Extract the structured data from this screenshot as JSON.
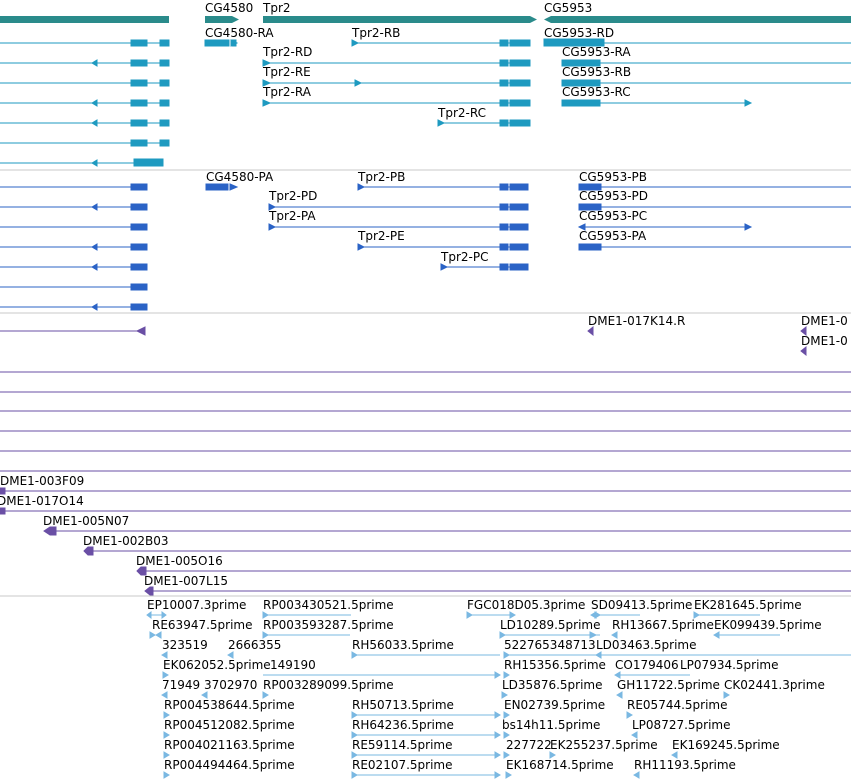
{
  "colors": {
    "gene": "#2a8b8b",
    "transcript_ra": "#1e9ac0",
    "transcript_pa": "#2b63c6",
    "clone": "#6a4fa5",
    "est": "#7ab8e2",
    "separator": "#c8c8c8",
    "label": "#000000"
  },
  "genes": {
    "labels": [
      "CG4580",
      "Tpr2",
      "CG5953"
    ]
  },
  "transcripts_ra": {
    "labels": [
      "CG4580-RA",
      "Tpr2-RD",
      "Tpr2-RB",
      "Tpr2-RE",
      "Tpr2-RA",
      "Tpr2-RC",
      "CG5953-RD",
      "CG5953-RA",
      "CG5953-RB",
      "CG5953-RC"
    ]
  },
  "transcripts_pa": {
    "labels": [
      "CG4580-PA",
      "Tpr2-PD",
      "Tpr2-PB",
      "Tpr2-PA",
      "Tpr2-PE",
      "Tpr2-PC",
      "CG5953-PB",
      "CG5953-PD",
      "CG5953-PC",
      "CG5953-PA"
    ]
  },
  "clones": {
    "labels": [
      "DME1-017K14.R",
      "DME1-0",
      "DME1-0",
      "DME1-003F09",
      "DME1-017O14",
      "DME1-005N07",
      "DME1-002B03",
      "DME1-005O16",
      "DME1-007L15"
    ]
  },
  "ests": {
    "labels": [
      "EP10007.3prime",
      "RP003430521.5prime",
      "FGC018D05.3prime",
      "SD09413.5prime",
      "EK281645.5prime",
      "RE63947.5prime",
      "RP003593287.5prime",
      "LD10289.5prime",
      "RH13667.5prime",
      "EK099439.5prime",
      "323519",
      "2666355",
      "RH56033.5prime",
      "522765348713",
      "LD03463.5prime",
      "EK062052.5prime",
      "149190",
      "RH15356.5prime",
      "CO179406",
      "LP07934.5prime",
      "71949",
      "3702970",
      "RP003289099.5prime",
      "LD35876.5prime",
      "GH11722.5prime",
      "CK02441.3prime",
      "RP004538644.5prime",
      "RH50713.5prime",
      "EN02739.5prime",
      "RE05744.5prime",
      "RP004512082.5prime",
      "RH64236.5prime",
      "bs14h11.5prime",
      "LP08727.5prime",
      "RP004021163.5prime",
      "RE59114.5prime",
      "227722",
      "EK255237.5prime",
      "EK169245.5prime",
      "RP004494464.5prime",
      "RE02107.5prime",
      "EK168714.5prime",
      "RH11193.5prime"
    ]
  }
}
